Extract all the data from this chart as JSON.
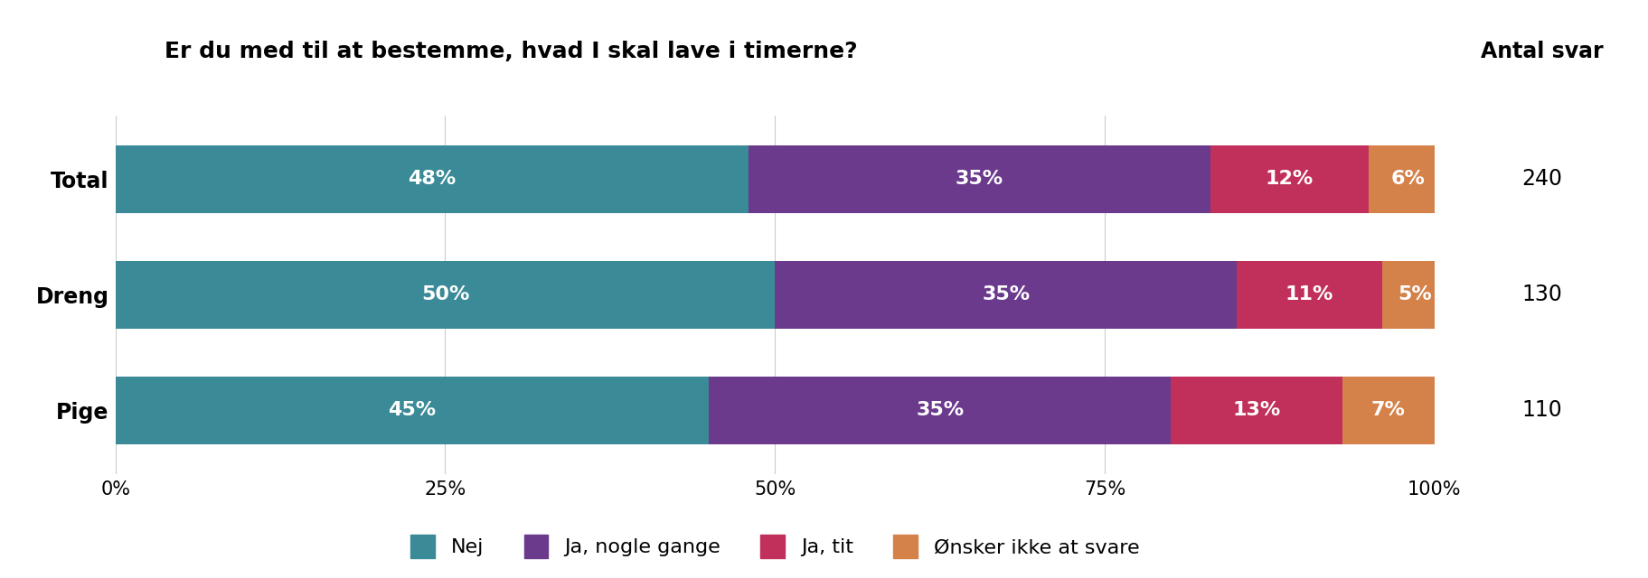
{
  "title": "Er du med til at bestemme, hvad I skal lave i timerne?",
  "title_fontsize": 18,
  "antal_svar_label": "Antal svar",
  "categories": [
    "Total",
    "Dreng",
    "Pige"
  ],
  "antal_svar": [
    240,
    130,
    110
  ],
  "segments": {
    "Nej": [
      48,
      50,
      45
    ],
    "Ja, nogle gange": [
      35,
      35,
      35
    ],
    "Ja, tit": [
      12,
      11,
      13
    ],
    "Ønsker ikke at svare": [
      6,
      5,
      7
    ]
  },
  "colors": {
    "Nej": "#3a8a97",
    "Ja, nogle gange": "#6b3a8c",
    "Ja, tit": "#c0305a",
    "Ønsker ikke at svare": "#d4824a"
  },
  "segment_order": [
    "Nej",
    "Ja, nogle gange",
    "Ja, tit",
    "Ønsker ikke at svare"
  ],
  "xticks": [
    0,
    25,
    50,
    75,
    100
  ],
  "xtick_labels": [
    "0%",
    "25%",
    "50%",
    "75%",
    "100%"
  ],
  "bar_height": 0.58,
  "text_color_inside": "#ffffff",
  "label_fontsize": 16,
  "tick_fontsize": 15,
  "legend_fontsize": 16,
  "category_fontsize": 17,
  "antal_fontsize": 17,
  "background_color": "#ffffff"
}
